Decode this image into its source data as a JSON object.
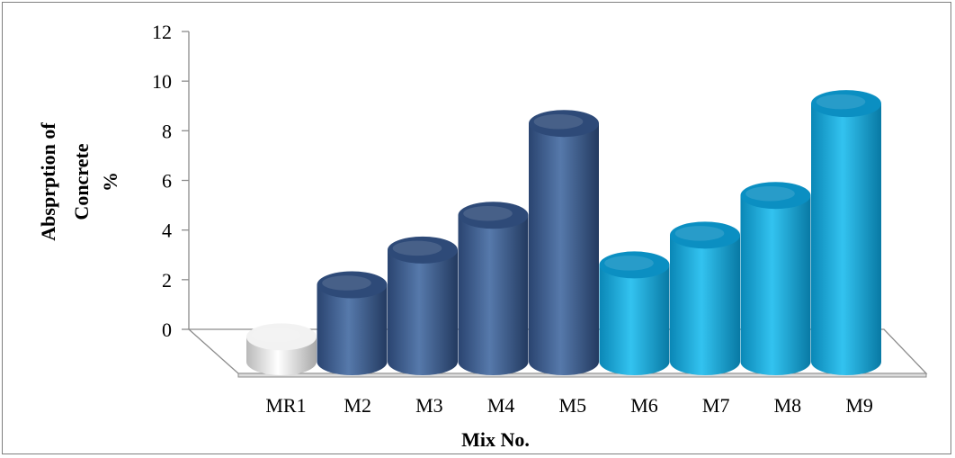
{
  "chart_data": {
    "type": "bar",
    "style": "3d-cylinder",
    "categories": [
      "MR1",
      "M2",
      "M3",
      "M4",
      "M5",
      "M6",
      "M7",
      "M8",
      "M9"
    ],
    "values": [
      1.0,
      3.1,
      4.5,
      5.9,
      9.6,
      3.9,
      5.1,
      6.7,
      10.4
    ],
    "groups": [
      "reference",
      "dark",
      "dark",
      "dark",
      "dark",
      "light",
      "light",
      "light",
      "light"
    ],
    "group_colors": {
      "reference": "#e6e6e6",
      "dark": "#3f6292",
      "light": "#0ea6dd"
    },
    "xlabel": "Mix No.",
    "ylabel_lines": [
      "Absprption of",
      "Concrete",
      "%"
    ],
    "ylim": [
      0,
      12
    ],
    "yticks": [
      0,
      2,
      4,
      6,
      8,
      10,
      12
    ],
    "grid": false,
    "legend": "none"
  }
}
